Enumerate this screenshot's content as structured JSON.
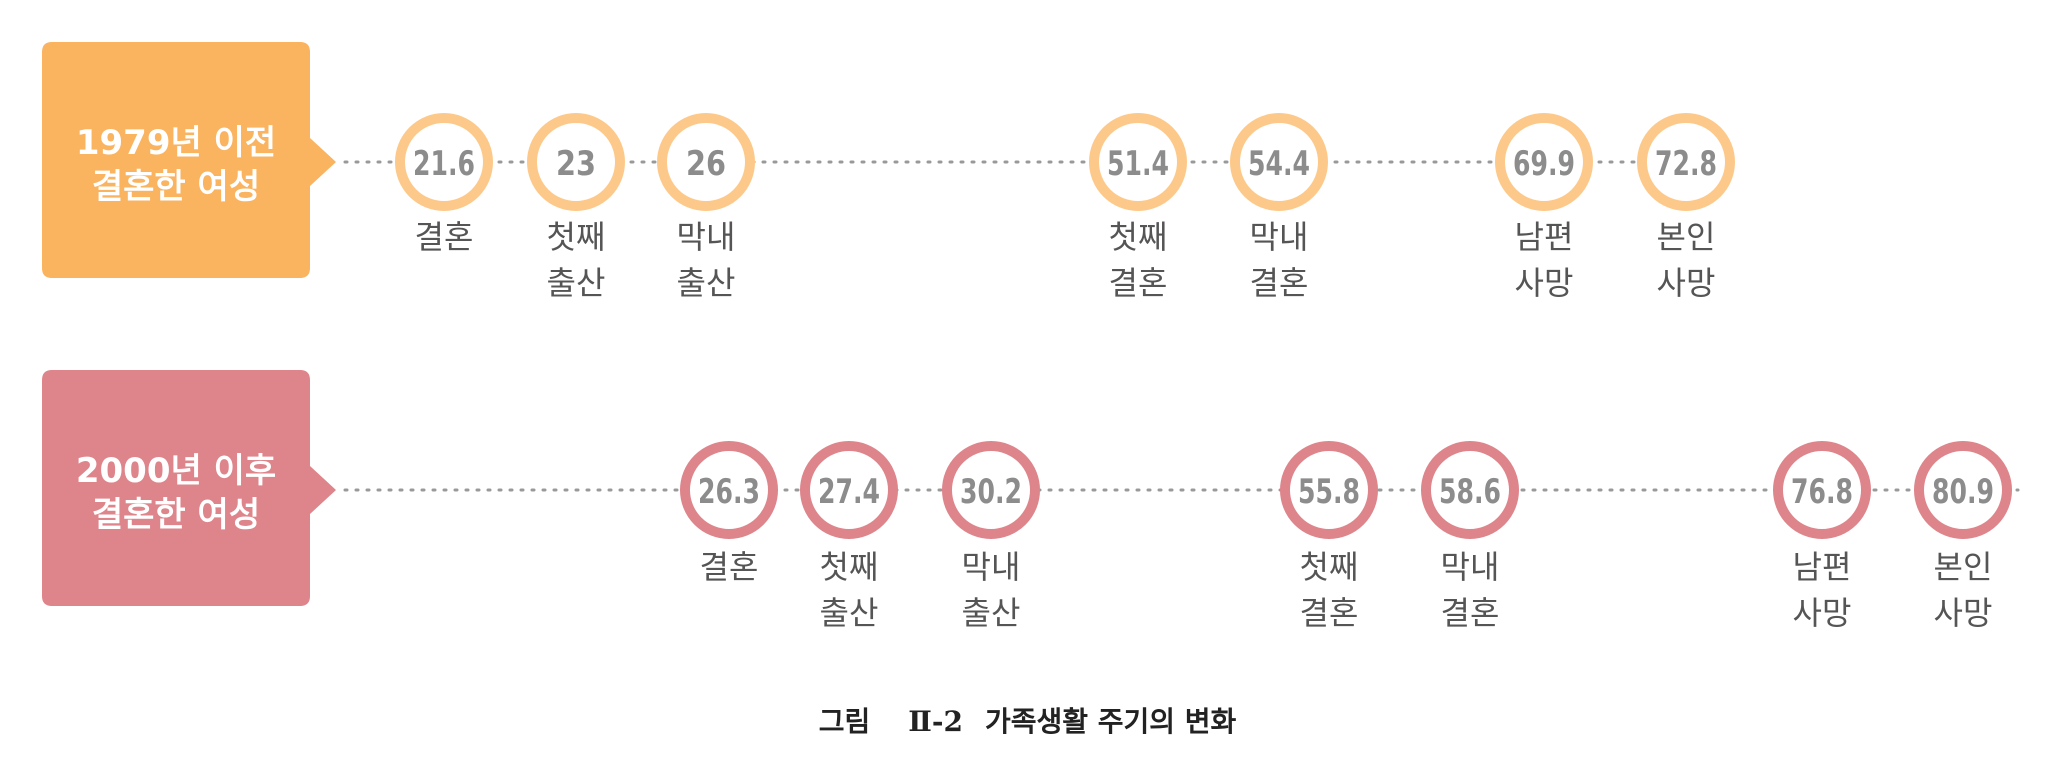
{
  "colors": {
    "row1": "#fab35f",
    "row1_ring": "#fdc98a",
    "row2": "#de848b",
    "value_text": "#8c8c8c",
    "event_text": "#555555",
    "dots": "#999999"
  },
  "rows": [
    {
      "label_line1": "1979년 이전",
      "label_line2": "결혼한 여성",
      "events": [
        {
          "age": "21.6",
          "label1": "결혼",
          "label2": ""
        },
        {
          "age": "23",
          "label1": "첫째",
          "label2": "출산"
        },
        {
          "age": "26",
          "label1": "막내",
          "label2": "출산"
        },
        {
          "age": "51.4",
          "label1": "첫째",
          "label2": "결혼"
        },
        {
          "age": "54.4",
          "label1": "막내",
          "label2": "결혼"
        },
        {
          "age": "69.9",
          "label1": "남편",
          "label2": "사망"
        },
        {
          "age": "72.8",
          "label1": "본인",
          "label2": "사망"
        }
      ]
    },
    {
      "label_line1": "2000년 이후",
      "label_line2": "결혼한 여성",
      "events": [
        {
          "age": "26.3",
          "label1": "결혼",
          "label2": ""
        },
        {
          "age": "27.4",
          "label1": "첫째",
          "label2": "출산"
        },
        {
          "age": "30.2",
          "label1": "막내",
          "label2": "출산"
        },
        {
          "age": "55.8",
          "label1": "첫째",
          "label2": "결혼"
        },
        {
          "age": "58.6",
          "label1": "막내",
          "label2": "결혼"
        },
        {
          "age": "76.8",
          "label1": "남편",
          "label2": "사망"
        },
        {
          "age": "80.9",
          "label1": "본인",
          "label2": "사망"
        }
      ]
    }
  ],
  "caption": {
    "prefix": "그림",
    "number": "Ⅱ-2",
    "title": "가족생활 주기의 변화"
  }
}
